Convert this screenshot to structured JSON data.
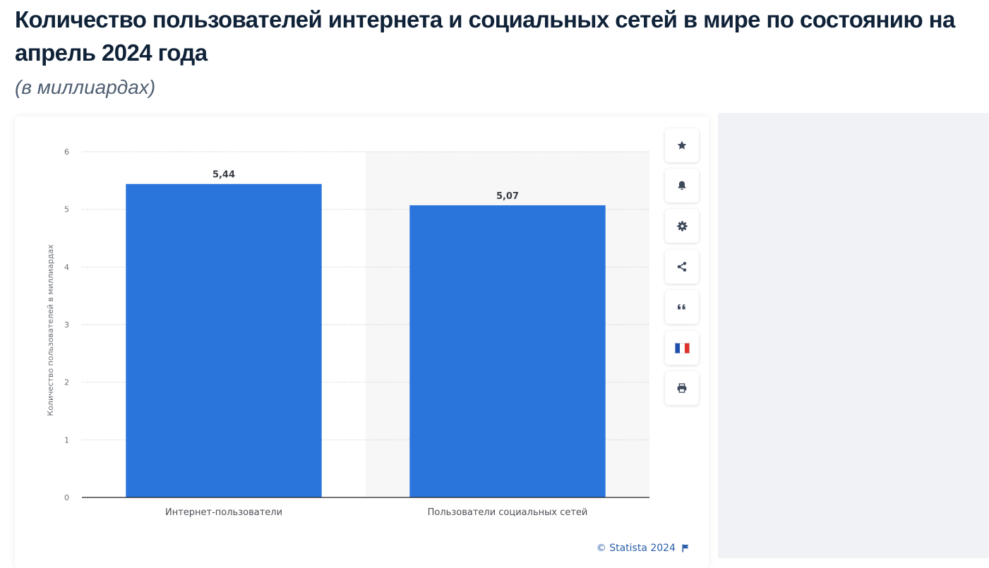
{
  "header": {
    "title": "Количество пользователей интернета и социальных сетей в мире по состоянию на апрель 2024 года",
    "subtitle": "(в миллиардах)"
  },
  "toolbar": {
    "buttons": [
      {
        "icon": "star-icon"
      },
      {
        "icon": "bell-icon"
      },
      {
        "icon": "gear-icon"
      },
      {
        "icon": "share-icon"
      },
      {
        "icon": "quote-icon"
      },
      {
        "icon": "french-flag-icon"
      },
      {
        "icon": "print-icon"
      }
    ]
  },
  "footer": {
    "credit": "© Statista 2024",
    "credit_icon": "flag-icon"
  },
  "colors": {
    "bar": "#2a75dc",
    "grid": "#c5c9ce",
    "axis_text": "#6b6f74",
    "highlight_band": "#f7f7f8",
    "link": "#2a5ea8"
  },
  "chart_data": {
    "type": "bar",
    "title": "Количество пользователей интернета и социальных сетей в мире по состоянию на апрель 2024 года",
    "subtitle": "(в миллиардах)",
    "categories": [
      "Интернет-пользователи",
      "Пользователи социальных сетей"
    ],
    "values": [
      5.44,
      5.07
    ],
    "value_labels": [
      "5,44",
      "5,07"
    ],
    "xlabel": "",
    "ylabel": "Количество пользователей в миллиардах",
    "ylim": [
      0,
      6
    ],
    "yticks": [
      0,
      1,
      2,
      3,
      4,
      5,
      6
    ],
    "grid": true,
    "legend": "none"
  }
}
